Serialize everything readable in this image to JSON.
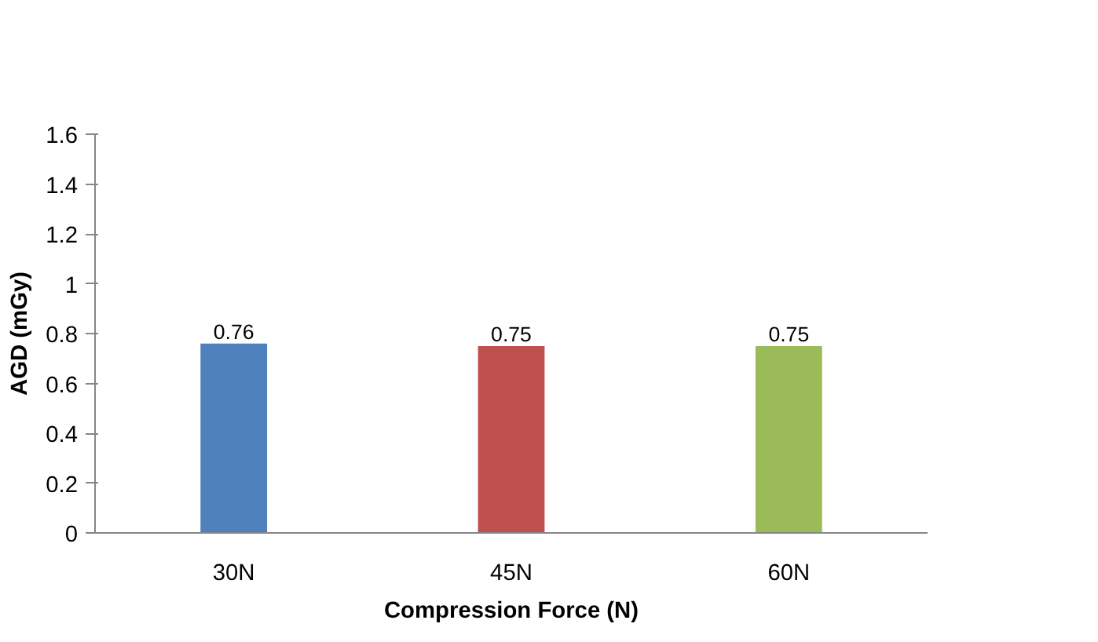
{
  "chart_data": {
    "type": "bar",
    "xlabel": "Compression Force (N)",
    "ylabel": "AGD (mGy)",
    "categories": [
      "30N",
      "45N",
      "60N"
    ],
    "values": [
      0.76,
      0.75,
      0.75
    ],
    "colors": [
      "#4f81bd",
      "#c0504d",
      "#9bbb59"
    ],
    "ylim": [
      0,
      1.6
    ],
    "yticks": [
      0,
      0.2,
      0.4,
      0.6,
      0.8,
      1,
      1.2,
      1.4,
      1.6
    ],
    "data_labels": true,
    "grid": false
  }
}
